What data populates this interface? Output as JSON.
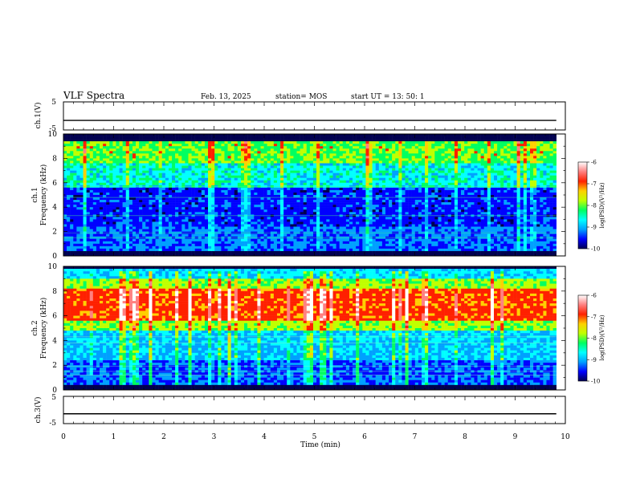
{
  "header": {
    "title": "VLF Spectra",
    "date": "Feb. 13, 2025",
    "station": "station= MOS",
    "start": "start  UT  =   13: 50: 1"
  },
  "chart_data": [
    {
      "type": "line",
      "name": "ch1-voltage",
      "ylabel": "ch.1(V)",
      "ylim": [
        -5,
        5
      ],
      "yticks": [
        "5",
        "-5"
      ],
      "xlim": [
        0,
        10
      ],
      "x": [
        0,
        9.82
      ],
      "values": [
        -1.6,
        -1.6
      ]
    },
    {
      "type": "heatmap",
      "name": "ch1-spectrogram",
      "ylabel": "ch.1\nFrequency  (kHz)",
      "ylabel_lines": [
        "ch.1",
        "Frequency  (kHz)"
      ],
      "ylim": [
        0,
        10
      ],
      "yticks": [
        "0",
        "2",
        "4",
        "6",
        "8",
        "10"
      ],
      "xlim": [
        0,
        10
      ],
      "data_xmax": 9.82,
      "colorbar": {
        "label": "log(PSD)(V²/Hz)",
        "range": [
          -10,
          -6
        ],
        "ticks": [
          "-6",
          "-7",
          "-8",
          "-9",
          "-10"
        ]
      }
    },
    {
      "type": "heatmap",
      "name": "ch2-spectrogram",
      "ylabel": "ch.2\nFrequency  (kHz)",
      "ylabel_lines": [
        "ch.2",
        "Frequency  (kHz)"
      ],
      "ylim": [
        0,
        10
      ],
      "yticks": [
        "0",
        "2",
        "4",
        "6",
        "8",
        "10"
      ],
      "xlim": [
        0,
        10
      ],
      "data_xmax": 9.82,
      "colorbar": {
        "label": "log(PSD)(V²/Hz)",
        "range": [
          -10,
          -6
        ],
        "ticks": [
          "-6",
          "-7",
          "-8",
          "-9",
          "-10"
        ]
      }
    },
    {
      "type": "line",
      "name": "ch3-voltage",
      "ylabel": "ch.3(V)",
      "ylim": [
        -5,
        5
      ],
      "yticks": [
        "5",
        "-5"
      ],
      "xlim": [
        0,
        10
      ],
      "x": [
        0,
        9.82
      ],
      "values": [
        -1.4,
        -1.4
      ]
    }
  ],
  "xaxis": {
    "label": "Time  (min)",
    "ticks": [
      "0",
      "1",
      "2",
      "3",
      "4",
      "5",
      "6",
      "7",
      "8",
      "9",
      "10"
    ]
  },
  "colormap": [
    "#000050",
    "#0000ff",
    "#00a0ff",
    "#00ffff",
    "#00ff60",
    "#c0ff00",
    "#ffd000",
    "#ff2000",
    "#ff8080",
    "#ffffff"
  ]
}
